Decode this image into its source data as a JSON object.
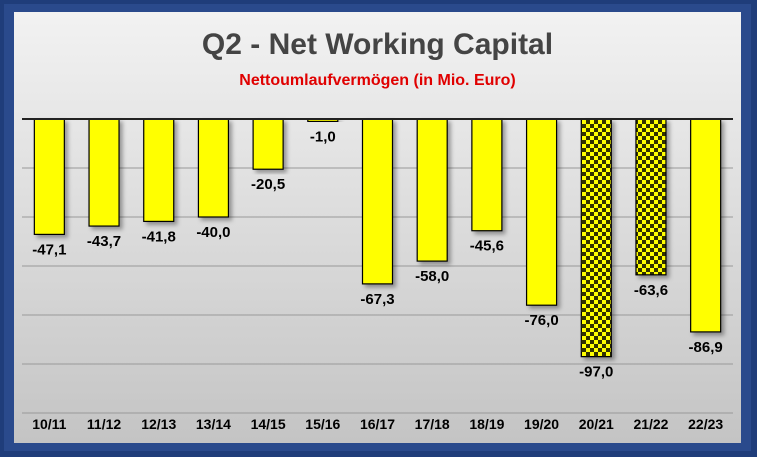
{
  "chart_data": {
    "type": "bar",
    "title": "Q2 - Net Working Capital",
    "subtitle": "Nettoumlaufvermögen (in Mio. Euro)",
    "xlabel": "",
    "ylabel": "",
    "categories": [
      "10/11",
      "11/12",
      "12/13",
      "13/14",
      "14/15",
      "15/16",
      "16/17",
      "17/18",
      "18/19",
      "19/20",
      "20/21",
      "21/22",
      "22/23"
    ],
    "values": [
      -47.1,
      -43.7,
      -41.8,
      -40.0,
      -20.5,
      -1.0,
      -67.3,
      -58.0,
      -45.6,
      -76.0,
      -97.0,
      -63.6,
      -86.9
    ],
    "value_labels": [
      "-47,1",
      "-43,7",
      "-41,8",
      "-40,0",
      "-20,5",
      "-1,0",
      "-67,3",
      "-58,0",
      "-45,6",
      "-76,0",
      "-97,0",
      "-63,6",
      "-86,9"
    ],
    "patterned": [
      false,
      false,
      false,
      false,
      false,
      false,
      false,
      false,
      false,
      false,
      true,
      true,
      false
    ],
    "ylim": [
      -120,
      0
    ],
    "grid": true,
    "legend": "none",
    "colors": {
      "bar": "#ffff00",
      "pattern": "#333300",
      "title": "#444444",
      "subtitle": "#e00000"
    }
  }
}
